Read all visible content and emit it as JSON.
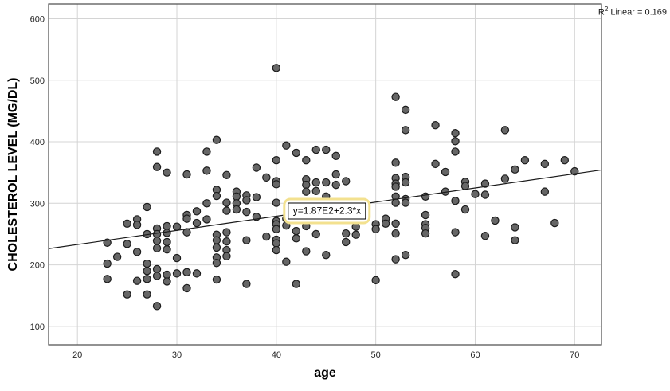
{
  "window": {
    "background": "#ffffff"
  },
  "chart_data": {
    "type": "scatter",
    "title": "",
    "xlabel": "age",
    "ylabel": "CHOLESTEROL LEVEL (MG/DL)",
    "xlim": [
      17.1,
      72.7
    ],
    "ylim": [
      70,
      624
    ],
    "xticks": [
      20,
      30,
      40,
      50,
      60,
      70
    ],
    "yticks": [
      100,
      200,
      300,
      400,
      500,
      600
    ],
    "grid": true,
    "legend": "none",
    "r2": {
      "prefix": "R",
      "sup": "2",
      "rest": " Linear = 0.169",
      "value": 0.169
    },
    "regression": {
      "equation_text": "y=1.87E2+2.3*x",
      "intercept": 187,
      "slope": 2.3,
      "label_anchor": {
        "x": 45.1,
        "y": 288
      }
    },
    "style": {
      "dot_fill": "#666666",
      "dot_stroke": "#1c1c1c",
      "grid_color": "#d4d4d4",
      "frame_color": "#4a4a4a",
      "line_color": "#1a1a1a",
      "highlight_ring": "#f3e18f",
      "text_color": "#262626"
    },
    "points": [
      [
        23,
        236
      ],
      [
        23,
        202
      ],
      [
        23,
        177
      ],
      [
        24,
        213
      ],
      [
        25,
        267
      ],
      [
        25,
        234
      ],
      [
        25,
        152
      ],
      [
        26,
        274
      ],
      [
        26,
        265
      ],
      [
        26,
        221
      ],
      [
        26,
        174
      ],
      [
        27,
        294
      ],
      [
        27,
        250
      ],
      [
        27,
        202
      ],
      [
        27,
        190
      ],
      [
        27,
        177
      ],
      [
        27,
        152
      ],
      [
        28,
        384
      ],
      [
        28,
        359
      ],
      [
        28,
        259
      ],
      [
        28,
        250
      ],
      [
        28,
        239
      ],
      [
        28,
        227
      ],
      [
        28,
        193
      ],
      [
        28,
        182
      ],
      [
        28,
        133
      ],
      [
        29,
        350
      ],
      [
        29,
        263
      ],
      [
        29,
        252
      ],
      [
        29,
        237
      ],
      [
        29,
        225
      ],
      [
        29,
        184
      ],
      [
        29,
        173
      ],
      [
        30,
        262
      ],
      [
        30,
        211
      ],
      [
        30,
        186
      ],
      [
        31,
        347
      ],
      [
        31,
        281
      ],
      [
        31,
        275
      ],
      [
        31,
        253
      ],
      [
        31,
        188
      ],
      [
        31,
        162
      ],
      [
        32,
        287
      ],
      [
        32,
        268
      ],
      [
        32,
        186
      ],
      [
        33,
        384
      ],
      [
        33,
        353
      ],
      [
        33,
        300
      ],
      [
        33,
        274
      ],
      [
        34,
        403
      ],
      [
        34,
        322
      ],
      [
        34,
        312
      ],
      [
        34,
        249
      ],
      [
        34,
        240
      ],
      [
        34,
        228
      ],
      [
        34,
        212
      ],
      [
        34,
        203
      ],
      [
        34,
        176
      ],
      [
        35,
        346
      ],
      [
        35,
        301
      ],
      [
        35,
        288
      ],
      [
        35,
        253
      ],
      [
        35,
        238
      ],
      [
        35,
        224
      ],
      [
        35,
        214
      ],
      [
        36,
        319
      ],
      [
        36,
        311
      ],
      [
        36,
        300
      ],
      [
        36,
        290
      ],
      [
        37,
        313
      ],
      [
        37,
        305
      ],
      [
        37,
        286
      ],
      [
        37,
        240
      ],
      [
        37,
        169
      ],
      [
        38,
        358
      ],
      [
        38,
        310
      ],
      [
        38,
        278
      ],
      [
        39,
        342
      ],
      [
        39,
        246
      ],
      [
        40,
        520
      ],
      [
        40,
        370
      ],
      [
        40,
        336
      ],
      [
        40,
        331
      ],
      [
        40,
        301
      ],
      [
        40,
        271
      ],
      [
        40,
        266
      ],
      [
        40,
        258
      ],
      [
        40,
        241
      ],
      [
        40,
        235
      ],
      [
        40,
        224
      ],
      [
        41,
        394
      ],
      [
        41,
        275
      ],
      [
        41,
        264
      ],
      [
        41,
        205
      ],
      [
        42,
        382
      ],
      [
        42,
        255
      ],
      [
        42,
        243
      ],
      [
        42,
        169
      ],
      [
        43,
        370
      ],
      [
        43,
        339
      ],
      [
        43,
        330
      ],
      [
        43,
        319
      ],
      [
        43,
        263
      ],
      [
        43,
        222
      ],
      [
        44,
        387
      ],
      [
        44,
        334
      ],
      [
        44,
        320
      ],
      [
        44,
        250
      ],
      [
        45,
        387
      ],
      [
        45,
        334
      ],
      [
        45,
        311
      ],
      [
        45,
        216
      ],
      [
        46,
        377
      ],
      [
        46,
        347
      ],
      [
        46,
        330
      ],
      [
        47,
        336
      ],
      [
        47,
        251
      ],
      [
        47,
        237
      ],
      [
        48,
        262
      ],
      [
        48,
        249
      ],
      [
        50,
        266
      ],
      [
        50,
        258
      ],
      [
        50,
        175
      ],
      [
        51,
        275
      ],
      [
        51,
        267
      ],
      [
        52,
        473
      ],
      [
        52,
        366
      ],
      [
        52,
        341
      ],
      [
        52,
        332
      ],
      [
        52,
        327
      ],
      [
        52,
        311
      ],
      [
        52,
        301
      ],
      [
        52,
        267
      ],
      [
        52,
        251
      ],
      [
        52,
        209
      ],
      [
        53,
        452
      ],
      [
        53,
        419
      ],
      [
        53,
        343
      ],
      [
        53,
        334
      ],
      [
        53,
        307
      ],
      [
        53,
        301
      ],
      [
        53,
        216
      ],
      [
        55,
        311
      ],
      [
        55,
        281
      ],
      [
        55,
        266
      ],
      [
        55,
        260
      ],
      [
        55,
        251
      ],
      [
        56,
        427
      ],
      [
        56,
        364
      ],
      [
        57,
        351
      ],
      [
        57,
        319
      ],
      [
        58,
        414
      ],
      [
        58,
        401
      ],
      [
        58,
        384
      ],
      [
        58,
        304
      ],
      [
        58,
        253
      ],
      [
        58,
        185
      ],
      [
        59,
        335
      ],
      [
        59,
        328
      ],
      [
        59,
        290
      ],
      [
        60,
        315
      ],
      [
        61,
        332
      ],
      [
        61,
        314
      ],
      [
        61,
        247
      ],
      [
        62,
        272
      ],
      [
        63,
        419
      ],
      [
        63,
        340
      ],
      [
        64,
        355
      ],
      [
        64,
        261
      ],
      [
        64,
        240
      ],
      [
        65,
        370
      ],
      [
        67,
        364
      ],
      [
        67,
        319
      ],
      [
        68,
        268
      ],
      [
        69,
        370
      ],
      [
        70,
        352
      ]
    ]
  }
}
